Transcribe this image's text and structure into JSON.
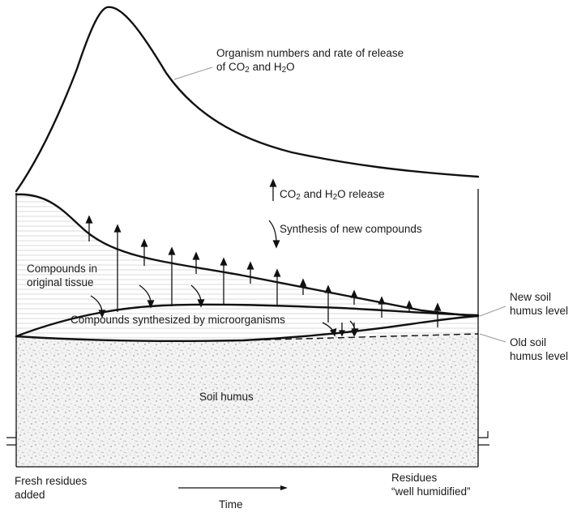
{
  "labels": {
    "organism": {
      "line1": "Organism numbers and rate of release",
      "line2_pre": "of CO",
      "sub1": "2",
      "line2_mid": " and H",
      "sub2": "2",
      "line2_post": "O"
    },
    "release": {
      "pre": "CO",
      "sub1": "2",
      "mid": " and H",
      "sub2": "2",
      "post": "O release"
    },
    "synthesis_new": "Synthesis of new compounds",
    "original_tissue": {
      "line1": "Compounds in",
      "line2": "original tissue"
    },
    "synthesized": "Compounds synthesized by microorganisms",
    "new_humus": {
      "line1": "New soil",
      "line2": "humus level"
    },
    "old_humus": {
      "line1": "Old soil",
      "line2": "humus level"
    },
    "soil_humus": "Soil humus",
    "fresh_residues": {
      "line1": "Fresh residues",
      "line2": "added"
    },
    "residues_humified": {
      "line1": "Residues",
      "line2": "“well humidified”"
    },
    "time": "Time"
  },
  "colors": {
    "ink": "#111111",
    "tissue_hatch": "#c9c9c9",
    "soil_speckle": "#8a8a8a"
  }
}
